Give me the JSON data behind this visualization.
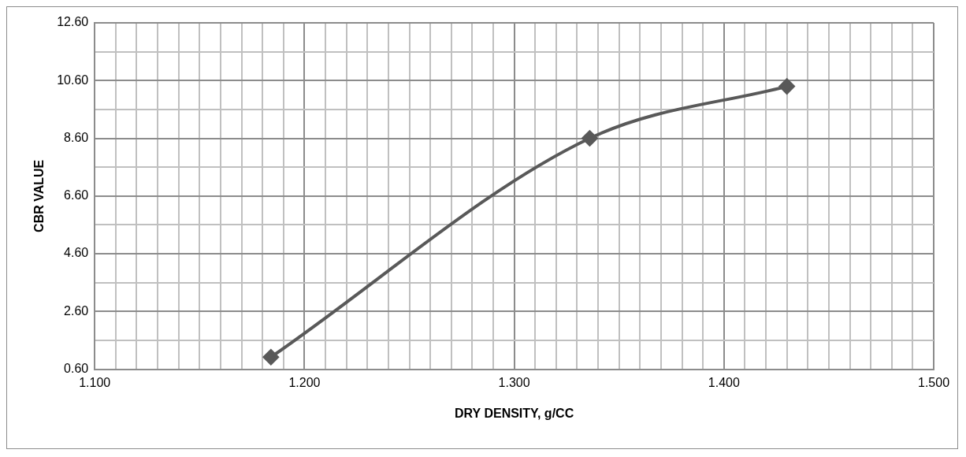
{
  "chart_data": {
    "type": "line",
    "xlabel": "DRY DENSITY, g/CC",
    "ylabel": "CBR VALUE",
    "x": [
      1.184,
      1.336,
      1.43
    ],
    "series": [
      {
        "color": "#595959",
        "values": [
          1.02,
          8.6,
          10.4
        ]
      }
    ],
    "xlim": [
      1.1,
      1.5
    ],
    "xticks": [
      {
        "value": 1.1,
        "label": "1.100"
      },
      {
        "value": 1.11,
        "label": null
      },
      {
        "value": 1.12,
        "label": null
      },
      {
        "value": 1.13,
        "label": null
      },
      {
        "value": 1.14,
        "label": null
      },
      {
        "value": 1.15,
        "label": null
      },
      {
        "value": 1.16,
        "label": null
      },
      {
        "value": 1.17,
        "label": null
      },
      {
        "value": 1.18,
        "label": null
      },
      {
        "value": 1.19,
        "label": null
      },
      {
        "value": 1.2,
        "label": "1.200"
      },
      {
        "value": 1.21,
        "label": null
      },
      {
        "value": 1.22,
        "label": null
      },
      {
        "value": 1.23,
        "label": null
      },
      {
        "value": 1.24,
        "label": null
      },
      {
        "value": 1.25,
        "label": null
      },
      {
        "value": 1.26,
        "label": null
      },
      {
        "value": 1.27,
        "label": null
      },
      {
        "value": 1.28,
        "label": null
      },
      {
        "value": 1.29,
        "label": null
      },
      {
        "value": 1.3,
        "label": "1.300"
      },
      {
        "value": 1.31,
        "label": null
      },
      {
        "value": 1.32,
        "label": null
      },
      {
        "value": 1.33,
        "label": null
      },
      {
        "value": 1.34,
        "label": null
      },
      {
        "value": 1.35,
        "label": null
      },
      {
        "value": 1.36,
        "label": null
      },
      {
        "value": 1.37,
        "label": null
      },
      {
        "value": 1.38,
        "label": null
      },
      {
        "value": 1.39,
        "label": null
      },
      {
        "value": 1.4,
        "label": "1.400"
      },
      {
        "value": 1.41,
        "label": null
      },
      {
        "value": 1.42,
        "label": null
      },
      {
        "value": 1.43,
        "label": null
      },
      {
        "value": 1.44,
        "label": null
      },
      {
        "value": 1.45,
        "label": null
      },
      {
        "value": 1.46,
        "label": null
      },
      {
        "value": 1.47,
        "label": null
      },
      {
        "value": 1.48,
        "label": null
      },
      {
        "value": 1.49,
        "label": null
      },
      {
        "value": 1.5,
        "label": "1.500"
      }
    ],
    "ylim": [
      0.6,
      12.6
    ],
    "yticks": [
      {
        "value": 0.6,
        "label": "0.60"
      },
      {
        "value": 1.6,
        "label": null
      },
      {
        "value": 2.6,
        "label": "2.60"
      },
      {
        "value": 3.6,
        "label": null
      },
      {
        "value": 4.6,
        "label": "4.60"
      },
      {
        "value": 5.6,
        "label": null
      },
      {
        "value": 6.6,
        "label": "6.60"
      },
      {
        "value": 7.6,
        "label": null
      },
      {
        "value": 8.6,
        "label": "8.60"
      },
      {
        "value": 9.6,
        "label": null
      },
      {
        "value": 10.6,
        "label": "10.60"
      },
      {
        "value": 11.6,
        "label": null
      },
      {
        "value": 12.6,
        "label": "12.60"
      }
    ],
    "grid": true,
    "legend": false,
    "marker": "diamond",
    "line_style": "solid"
  }
}
